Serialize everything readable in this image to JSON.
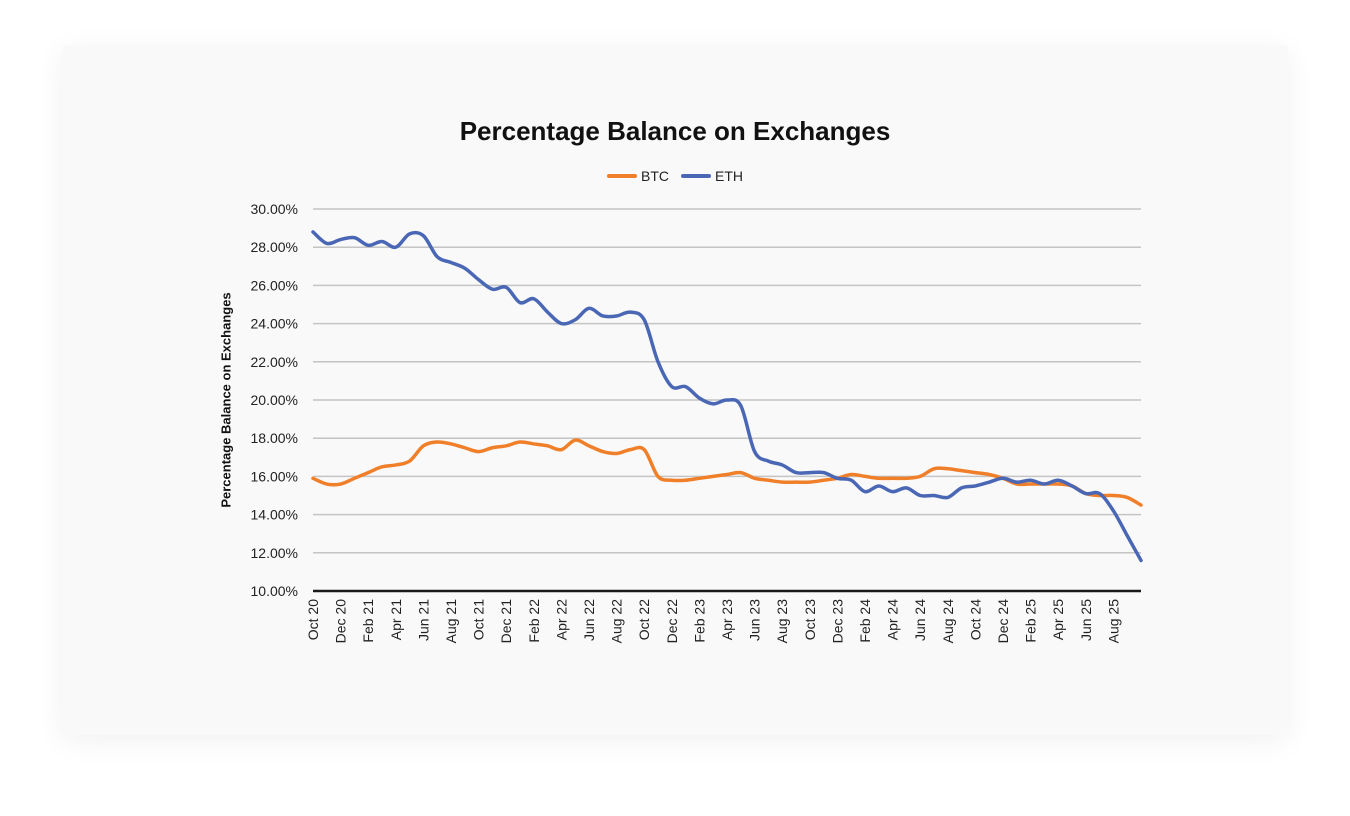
{
  "chart_data": {
    "type": "line",
    "title": "Percentage Balance on Exchanges",
    "ylabel": "Percentage Balance on Exchanges",
    "xlabel": "",
    "ylim": [
      10,
      30
    ],
    "yticks": [
      "10.00%",
      "12.00%",
      "14.00%",
      "16.00%",
      "18.00%",
      "20.00%",
      "22.00%",
      "24.00%",
      "26.00%",
      "28.00%",
      "30.00%"
    ],
    "grid": true,
    "legend": "top",
    "x_tick_labels": [
      "Oct 20",
      "Dec 20",
      "Feb 21",
      "Apr 21",
      "Jun 21",
      "Aug 21",
      "Oct 21",
      "Dec 21",
      "Feb 22",
      "Apr 22",
      "Jun 22",
      "Aug 22",
      "Oct 22",
      "Dec 22",
      "Feb 23",
      "Apr 23",
      "Jun 23",
      "Aug 23",
      "Oct 23",
      "Dec 23",
      "Feb 24",
      "Apr 24",
      "Jun 24",
      "Aug 24",
      "Oct 24",
      "Dec 24",
      "Feb 25",
      "Apr 25",
      "Jun 25",
      "Aug 25"
    ],
    "x_start": "Oct 20",
    "x_end": "Oct 25",
    "x_step": "monthly",
    "series": [
      {
        "name": "BTC",
        "color": "#f07f2a",
        "values": [
          15.9,
          15.6,
          15.6,
          15.9,
          16.2,
          16.5,
          16.6,
          16.8,
          17.6,
          17.8,
          17.7,
          17.5,
          17.3,
          17.5,
          17.6,
          17.8,
          17.7,
          17.6,
          17.4,
          17.9,
          17.6,
          17.3,
          17.2,
          17.4,
          17.4,
          16.0,
          15.8,
          15.8,
          15.9,
          16.0,
          16.1,
          16.2,
          15.9,
          15.8,
          15.7,
          15.7,
          15.7,
          15.8,
          15.9,
          16.1,
          16.0,
          15.9,
          15.9,
          15.9,
          16.0,
          16.4,
          16.4,
          16.3,
          16.2,
          16.1,
          15.9,
          15.6,
          15.6,
          15.6,
          15.6,
          15.5,
          15.1,
          15.0,
          15.0,
          14.9,
          14.5
        ]
      },
      {
        "name": "ETH",
        "color": "#4a67b5",
        "values": [
          28.8,
          28.2,
          28.4,
          28.5,
          28.1,
          28.3,
          28.0,
          28.7,
          28.6,
          27.5,
          27.2,
          26.9,
          26.3,
          25.8,
          25.9,
          25.1,
          25.3,
          24.6,
          24.0,
          24.2,
          24.8,
          24.4,
          24.4,
          24.6,
          24.2,
          22.0,
          20.7,
          20.7,
          20.1,
          19.8,
          20.0,
          19.7,
          17.3,
          16.8,
          16.6,
          16.2,
          16.2,
          16.2,
          15.9,
          15.8,
          15.2,
          15.5,
          15.2,
          15.4,
          15.0,
          15.0,
          14.9,
          15.4,
          15.5,
          15.7,
          15.9,
          15.7,
          15.8,
          15.6,
          15.8,
          15.5,
          15.1,
          15.1,
          14.2,
          12.9,
          11.6
        ]
      }
    ]
  }
}
